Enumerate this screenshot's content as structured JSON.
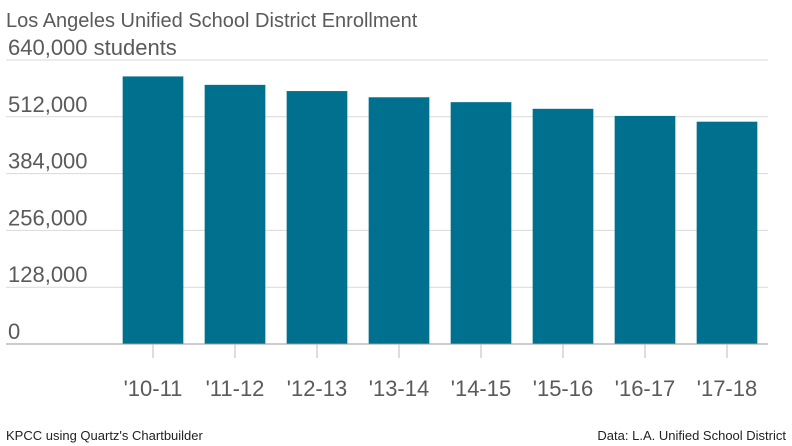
{
  "chart_data": {
    "type": "bar",
    "title": "Los Angeles Unified School District Enrollment",
    "categories": [
      "'10-11",
      "'11-12",
      "'12-13",
      "'13-14",
      "'14-15",
      "'15-16",
      "'16-17",
      "'17-18"
    ],
    "values": [
      603000,
      584000,
      570000,
      556000,
      545000,
      530000,
      514000,
      501000
    ],
    "yticks": [
      0,
      128000,
      256000,
      384000,
      512000,
      640000
    ],
    "ytick_labels": [
      "0",
      "128,000",
      "256,000",
      "384,000",
      "512,000",
      "640,000 students"
    ],
    "ylim": [
      0,
      640000
    ],
    "xlabel": "",
    "ylabel": "",
    "grid": true,
    "bar_color": "#00708f"
  },
  "footer": {
    "credit": "KPCC using Quartz's Chartbuilder",
    "source": "Data: L.A. Unified School District"
  },
  "colors": {
    "bar": "#00708f",
    "grid": "#d9d9d9",
    "text": "#5a5a5a"
  }
}
